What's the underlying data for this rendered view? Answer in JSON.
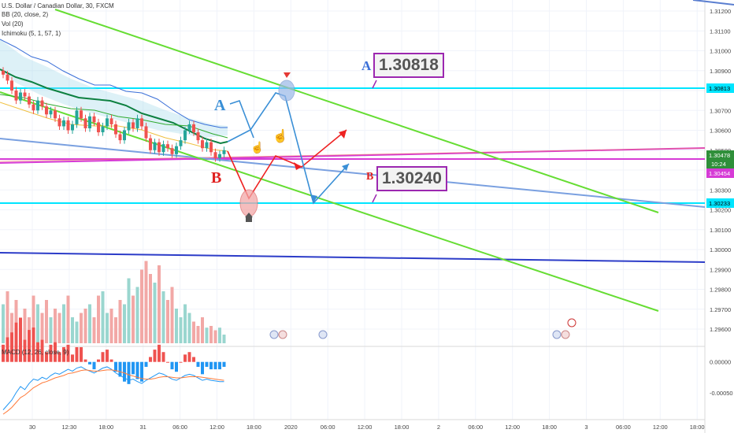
{
  "legend": {
    "symbol": "U.S. Dollar / Canadian Dollar, 30, FXCM",
    "bb": "BB (20, close, 2)",
    "vol": "Vol (20)",
    "ichimoku": "Ichimoku (5, 1, 57, 1)",
    "macd": "MACD (12, 26, close, 9)"
  },
  "annotations": {
    "upper_target": "1.30818",
    "lower_target": "1.30240",
    "label_a": "A",
    "label_b": "B"
  },
  "price_axis": {
    "ticks": [
      "1.31200",
      "1.31100",
      "1.31000",
      "1.30900",
      "1.30800",
      "1.30700",
      "1.30600",
      "1.30500",
      "1.30400",
      "1.30300",
      "1.30200",
      "1.30100",
      "1.30000",
      "1.29900",
      "1.29800",
      "1.29700",
      "1.29600"
    ],
    "highlight_upper": "1.30813",
    "last_price": "1.30478",
    "countdown": "10:24",
    "magenta_level": "1.30454",
    "highlight_lower": "1.30233"
  },
  "macd_axis": {
    "ticks": [
      "0.00000",
      "-0.00050"
    ]
  },
  "time_axis": {
    "labels": [
      "30",
      "12:30",
      "18:00",
      "31",
      "06:00",
      "12:00",
      "18:00",
      "2020",
      "06:00",
      "12:00",
      "18:00",
      "2",
      "06:00",
      "12:00",
      "18:00",
      "3",
      "06:00",
      "12:00",
      "18:00"
    ]
  },
  "colors": {
    "bull": "#26a69a",
    "bear": "#ef5350",
    "green_line": "#66dd33",
    "cyan_level": "#00e5ff",
    "magenta_line": "#d63bd6",
    "blue_trend": "#7aa0e0",
    "navy_line": "#2c3cc8",
    "ichimoku": "#0d8040",
    "red_arrow": "#ee2222",
    "blue_arrow": "#3a8fd6",
    "annot_border": "#9c27b0"
  },
  "chart_data": {
    "type": "candlestick",
    "symbol": "USDCAD",
    "timeframe": "30",
    "ylim": [
      1.2955,
      1.3125
    ],
    "levels": [
      1.30813,
      1.30233,
      1.30454,
      1.30478
    ],
    "projection_targets": [
      1.30818,
      1.3024
    ],
    "closes": [
      1.3088,
      1.3085,
      1.308,
      1.3075,
      1.3079,
      1.3077,
      1.3073,
      1.307,
      1.3075,
      1.3072,
      1.3068,
      1.307,
      1.3066,
      1.3062,
      1.3065,
      1.306,
      1.3063,
      1.307,
      1.3066,
      1.3061,
      1.3067,
      1.3064,
      1.3059,
      1.3062,
      1.3066,
      1.3063,
      1.3058,
      1.3055,
      1.306,
      1.3064,
      1.3061,
      1.3066,
      1.3062,
      1.3056,
      1.305,
      1.3054,
      1.3049,
      1.3053,
      1.3051,
      1.3048,
      1.3052,
      1.3055,
      1.306,
      1.3063,
      1.3059,
      1.3055,
      1.3051,
      1.3054,
      1.3049,
      1.3046,
      1.3048,
      1.305
    ],
    "volume": [
      0.45,
      0.6,
      0.35,
      0.5,
      0.25,
      0.4,
      0.3,
      0.55,
      0.45,
      0.35,
      0.5,
      0.3,
      0.4,
      0.35,
      0.45,
      0.55,
      0.3,
      0.25,
      0.35,
      0.4,
      0.45,
      0.3,
      0.55,
      0.6,
      0.35,
      0.4,
      0.3,
      0.5,
      0.45,
      0.75,
      0.55,
      0.65,
      0.85,
      0.95,
      0.8,
      0.7,
      0.9,
      0.6,
      0.5,
      0.65,
      0.4,
      0.3,
      0.45,
      0.35,
      0.25,
      0.2,
      0.3,
      0.18,
      0.2,
      0.15,
      0.18,
      0.1
    ],
    "macd_line": [
      -0.00078,
      -0.0007,
      -0.00062,
      -0.0005,
      -0.0004,
      -0.00045,
      -0.00035,
      -0.00028,
      -0.0003,
      -0.00025,
      -0.00028,
      -0.00022,
      -0.00018,
      -0.0002,
      -0.00016,
      -0.00012,
      -0.00015,
      -0.0001,
      -8e-05,
      -0.00012,
      -0.00015,
      -0.00018,
      -0.00014,
      -0.0001,
      -8e-05,
      -0.00012,
      -0.00018,
      -0.00022,
      -0.00026,
      -0.0003,
      -0.00028,
      -0.00032,
      -0.00035,
      -0.0003,
      -0.00026,
      -0.00022,
      -0.00018,
      -0.0002,
      -0.00024,
      -0.00028,
      -0.0003,
      -0.00026,
      -0.00022,
      -0.0002,
      -0.00022,
      -0.00026,
      -0.0003,
      -0.00028,
      -0.0003,
      -0.00031,
      -0.00032,
      -0.00032
    ],
    "signal_line": [
      -0.00085,
      -0.0008,
      -0.00074,
      -0.00066,
      -0.00058,
      -0.00054,
      -0.00048,
      -0.00042,
      -0.00038,
      -0.00034,
      -0.00032,
      -0.00029,
      -0.00026,
      -0.00024,
      -0.00022,
      -0.00019,
      -0.00018,
      -0.00016,
      -0.00014,
      -0.00013,
      -0.00014,
      -0.00015,
      -0.00015,
      -0.00014,
      -0.00013,
      -0.00013,
      -0.00014,
      -0.00016,
      -0.00018,
      -0.00021,
      -0.00023,
      -0.00025,
      -0.00027,
      -0.00028,
      -0.00028,
      -0.00027,
      -0.00025,
      -0.00024,
      -0.00024,
      -0.00025,
      -0.00026,
      -0.00026,
      -0.00025,
      -0.00024,
      -0.00024,
      -0.00024,
      -0.00025,
      -0.00026,
      -0.00027,
      -0.00028,
      -0.00029,
      -0.0003
    ]
  }
}
